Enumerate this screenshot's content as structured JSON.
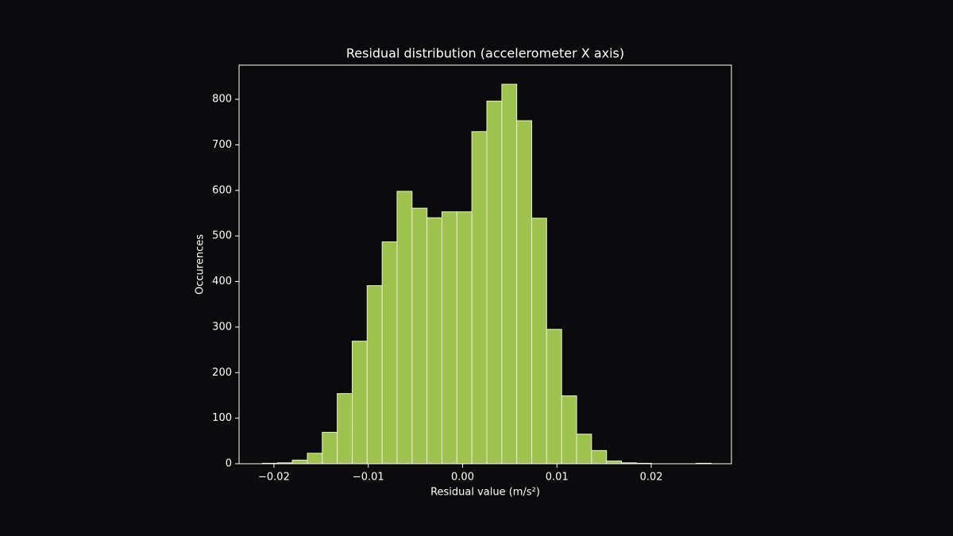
{
  "chart_data": {
    "type": "histogram",
    "title": "Residual distribution (accelerometer X axis)",
    "x_label": "Residual value (m/s²)",
    "y_label": "Occurences",
    "bins": [
      -0.02122,
      -0.01963,
      -0.01805,
      -0.01646,
      -0.01488,
      -0.01329,
      -0.0117,
      -0.01012,
      -0.00853,
      -0.00695,
      -0.00536,
      -0.00377,
      -0.00219,
      -0.0006,
      0.00098,
      0.00257,
      0.00416,
      0.00574,
      0.00733,
      0.00891,
      0.0105,
      0.01209,
      0.01367,
      0.01526,
      0.01684,
      0.01843,
      0.02002,
      0.0216,
      0.02319,
      0.02477,
      0.02636
    ],
    "values": [
      1,
      2,
      8,
      23,
      69,
      154,
      269,
      391,
      487,
      598,
      561,
      540,
      553,
      553,
      729,
      796,
      833,
      753,
      539,
      295,
      149,
      65,
      29,
      6,
      2,
      1,
      0,
      0,
      0,
      1
    ],
    "color": "#9dc24e",
    "edge_color": "#e6efd6",
    "xlim": [
      -0.0237,
      0.0285
    ],
    "xticks": [
      {
        "value": -0.02,
        "label": "−0.02"
      },
      {
        "value": -0.01,
        "label": "−0.01"
      },
      {
        "value": 0,
        "label": "0.00"
      },
      0.01,
      0.02
    ],
    "ylim": [
      0,
      875
    ],
    "yticks": [
      0,
      100,
      200,
      300,
      400,
      500,
      600,
      700,
      800
    ],
    "grid": false
  }
}
